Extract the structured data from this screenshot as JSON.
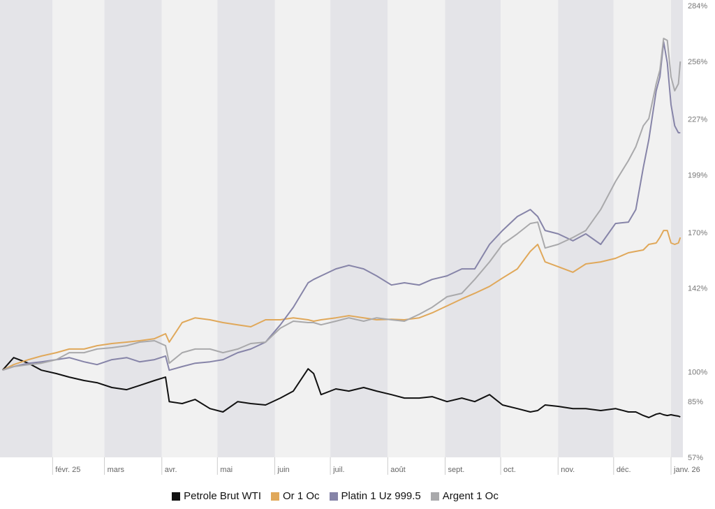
{
  "chart_data": {
    "type": "line",
    "title": "",
    "xlabel": "",
    "ylabel": "",
    "x_unit": "days since 1 Jan 2025",
    "xlim": [
      2.6,
      371.4
    ],
    "ylim": [
      57,
      284
    ],
    "y_ticks": [
      57,
      85,
      100,
      142,
      170,
      199,
      227,
      256,
      284
    ],
    "y_tick_labels": [
      "57%",
      "85%",
      "100%",
      "142%",
      "170%",
      "199%",
      "227%",
      "256%",
      "284%"
    ],
    "months": [
      {
        "label": "",
        "day": 0
      },
      {
        "label": "févr. 25",
        "day": 31
      },
      {
        "label": "mars",
        "day": 59
      },
      {
        "label": "avr.",
        "day": 90
      },
      {
        "label": "mai",
        "day": 120
      },
      {
        "label": "juin",
        "day": 151
      },
      {
        "label": "juil.",
        "day": 181
      },
      {
        "label": "août",
        "day": 212
      },
      {
        "label": "sept.",
        "day": 243
      },
      {
        "label": "oct.",
        "day": 273
      },
      {
        "label": "nov.",
        "day": 304
      },
      {
        "label": "déc.",
        "day": 334
      },
      {
        "label": "janv. 26",
        "day": 365
      }
    ],
    "x": [
      4,
      10,
      18,
      25,
      33,
      40,
      48,
      55,
      63,
      71,
      78,
      86,
      92,
      94,
      101,
      108,
      116,
      123,
      131,
      138,
      146,
      154,
      161,
      169,
      172,
      176,
      184,
      191,
      199,
      206,
      214,
      221,
      229,
      236,
      244,
      252,
      259,
      267,
      274,
      282,
      289,
      293,
      297,
      304,
      312,
      319,
      327,
      335,
      342,
      346,
      350,
      353,
      357,
      359,
      361,
      363,
      365,
      367,
      369,
      370
    ],
    "series": [
      {
        "name": "Petrole Brut WTI",
        "color": "#111111",
        "values": [
          100.8,
          107.1,
          104.3,
          100.8,
          99.1,
          97.3,
          95.6,
          94.5,
          92.1,
          91.0,
          93.1,
          95.6,
          97.3,
          85.0,
          84.0,
          86.1,
          81.5,
          79.8,
          85.0,
          84.0,
          83.3,
          86.8,
          90.3,
          101.5,
          99.1,
          88.5,
          91.4,
          90.3,
          92.1,
          90.3,
          88.5,
          86.8,
          86.8,
          87.5,
          85.0,
          86.8,
          85.0,
          88.5,
          83.3,
          81.5,
          79.8,
          80.5,
          83.3,
          82.6,
          81.5,
          81.5,
          80.5,
          81.5,
          79.8,
          79.8,
          78.0,
          77.0,
          78.7,
          79.1,
          78.4,
          78.0,
          78.4,
          78.0,
          77.7,
          77.3
        ]
      },
      {
        "name": "Or 1 Oc",
        "color": "#e0a85a",
        "values": [
          100.8,
          103.6,
          106.1,
          107.9,
          109.6,
          111.4,
          111.4,
          113.1,
          114.2,
          114.9,
          115.6,
          116.6,
          119.1,
          114.9,
          124.7,
          127.1,
          126.1,
          124.7,
          123.6,
          122.6,
          126.1,
          126.1,
          127.1,
          126.1,
          125.4,
          126.1,
          127.1,
          128.2,
          127.1,
          126.1,
          126.4,
          126.1,
          127.1,
          129.6,
          133.1,
          136.6,
          139.4,
          142.9,
          147.1,
          151.7,
          160.5,
          164.0,
          155.2,
          152.8,
          150.0,
          154.2,
          155.2,
          157.0,
          159.8,
          160.5,
          161.2,
          164.0,
          164.7,
          167.5,
          171.0,
          171.0,
          164.7,
          164.0,
          164.7,
          167.5
        ]
      },
      {
        "name": "Platin 1 Uz 999.5",
        "color": "#8684a8",
        "values": [
          100.8,
          102.6,
          104.3,
          105.0,
          106.1,
          107.1,
          105.0,
          103.6,
          106.1,
          107.1,
          105.0,
          106.1,
          107.9,
          100.8,
          102.6,
          104.3,
          105.0,
          106.1,
          109.6,
          111.4,
          114.9,
          123.6,
          132.4,
          144.7,
          146.4,
          148.2,
          151.7,
          153.5,
          151.7,
          148.2,
          143.6,
          144.7,
          143.6,
          146.4,
          148.2,
          151.7,
          151.7,
          164.0,
          171.0,
          178.0,
          181.5,
          178.0,
          171.0,
          169.3,
          165.8,
          169.3,
          164.0,
          174.5,
          175.2,
          181.5,
          202.6,
          216.6,
          241.2,
          248.2,
          265.8,
          255.2,
          234.2,
          223.6,
          220.1,
          220.1
        ]
      },
      {
        "name": "Argent 1 Oc",
        "color": "#a9a9ab",
        "values": [
          100.8,
          102.6,
          103.6,
          104.3,
          106.1,
          109.6,
          109.6,
          111.4,
          112.1,
          113.1,
          114.9,
          115.6,
          113.1,
          104.3,
          109.6,
          111.4,
          111.4,
          109.6,
          111.4,
          114.2,
          114.9,
          121.9,
          125.4,
          124.7,
          124.7,
          123.6,
          125.4,
          127.1,
          125.4,
          127.1,
          126.1,
          125.4,
          128.9,
          132.4,
          137.7,
          139.4,
          146.4,
          155.2,
          164.0,
          169.3,
          174.5,
          175.2,
          162.2,
          164.0,
          167.5,
          171.0,
          181.5,
          195.6,
          206.1,
          213.1,
          223.6,
          227.2,
          244.7,
          251.7,
          267.5,
          266.5,
          248.2,
          241.2,
          244.7,
          255.9
        ]
      }
    ],
    "legend": {
      "position": "bottom-center",
      "entries": [
        "Petrole Brut WTI",
        "Or 1 Oc",
        "Platin 1 Uz 999.5",
        "Argent 1 Oc"
      ]
    },
    "grid": false,
    "band_colors": [
      "#e4e4e8",
      "#f1f1f1"
    ]
  }
}
